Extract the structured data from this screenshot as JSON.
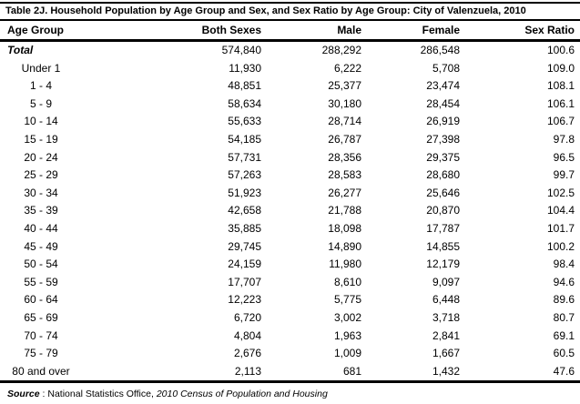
{
  "title": "Table 2J. Household Population by Age Group and Sex, and Sex Ratio by Age Group: City of Valenzuela, 2010",
  "table": {
    "columns": [
      "Age Group",
      "Both Sexes",
      "Male",
      "Female",
      "Sex Ratio"
    ],
    "total_row": {
      "age_group": "Total",
      "both_sexes": "574,840",
      "male": "288,292",
      "female": "286,548",
      "sex_ratio": "100.6"
    },
    "rows": [
      {
        "age_group": "Under 1",
        "both_sexes": "11,930",
        "male": "6,222",
        "female": "5,708",
        "sex_ratio": "109.0"
      },
      {
        "age_group": "1 - 4",
        "both_sexes": "48,851",
        "male": "25,377",
        "female": "23,474",
        "sex_ratio": "108.1"
      },
      {
        "age_group": "5 - 9",
        "both_sexes": "58,634",
        "male": "30,180",
        "female": "28,454",
        "sex_ratio": "106.1"
      },
      {
        "age_group": "10 - 14",
        "both_sexes": "55,633",
        "male": "28,714",
        "female": "26,919",
        "sex_ratio": "106.7"
      },
      {
        "age_group": "15 - 19",
        "both_sexes": "54,185",
        "male": "26,787",
        "female": "27,398",
        "sex_ratio": "97.8"
      },
      {
        "age_group": "20 - 24",
        "both_sexes": "57,731",
        "male": "28,356",
        "female": "29,375",
        "sex_ratio": "96.5"
      },
      {
        "age_group": "25 - 29",
        "both_sexes": "57,263",
        "male": "28,583",
        "female": "28,680",
        "sex_ratio": "99.7"
      },
      {
        "age_group": "30 - 34",
        "both_sexes": "51,923",
        "male": "26,277",
        "female": "25,646",
        "sex_ratio": "102.5"
      },
      {
        "age_group": "35 - 39",
        "both_sexes": "42,658",
        "male": "21,788",
        "female": "20,870",
        "sex_ratio": "104.4"
      },
      {
        "age_group": "40 - 44",
        "both_sexes": "35,885",
        "male": "18,098",
        "female": "17,787",
        "sex_ratio": "101.7"
      },
      {
        "age_group": "45 - 49",
        "both_sexes": "29,745",
        "male": "14,890",
        "female": "14,855",
        "sex_ratio": "100.2"
      },
      {
        "age_group": "50 - 54",
        "both_sexes": "24,159",
        "male": "11,980",
        "female": "12,179",
        "sex_ratio": "98.4"
      },
      {
        "age_group": "55 - 59",
        "both_sexes": "17,707",
        "male": "8,610",
        "female": "9,097",
        "sex_ratio": "94.6"
      },
      {
        "age_group": "60 - 64",
        "both_sexes": "12,223",
        "male": "5,775",
        "female": "6,448",
        "sex_ratio": "89.6"
      },
      {
        "age_group": "65 - 69",
        "both_sexes": "6,720",
        "male": "3,002",
        "female": "3,718",
        "sex_ratio": "80.7"
      },
      {
        "age_group": "70 - 74",
        "both_sexes": "4,804",
        "male": "1,963",
        "female": "2,841",
        "sex_ratio": "69.1"
      },
      {
        "age_group": "75 - 79",
        "both_sexes": "2,676",
        "male": "1,009",
        "female": "1,667",
        "sex_ratio": "60.5"
      },
      {
        "age_group": "80 and over",
        "both_sexes": "2,113",
        "male": "681",
        "female": "1,432",
        "sex_ratio": "47.6"
      }
    ]
  },
  "source": {
    "label": "Source",
    "separator": " : ",
    "text": "National Statistics Office, ",
    "publication": "2010 Census of Population and Housing"
  }
}
